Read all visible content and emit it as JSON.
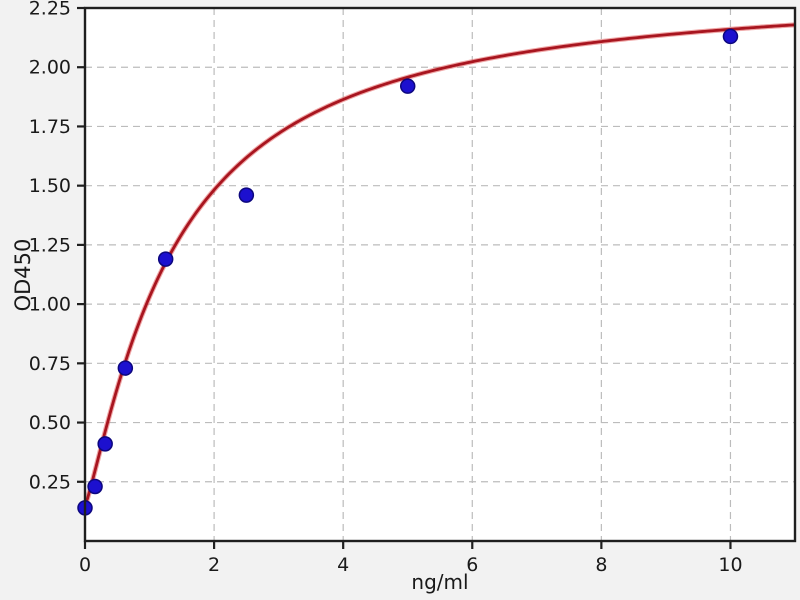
{
  "chart_data": {
    "type": "scatter",
    "title": "",
    "xlabel": "ng/ml",
    "ylabel": "OD450",
    "xlim": [
      0,
      11
    ],
    "ylim": [
      0,
      2.25
    ],
    "x_ticks": [
      0,
      2,
      4,
      6,
      8,
      10
    ],
    "y_ticks": [
      0.25,
      0.5,
      0.75,
      1.0,
      1.25,
      1.5,
      1.75,
      2.0,
      2.25
    ],
    "grid": {
      "visible": true,
      "line_style": "dashed",
      "color": "#bcbcbc"
    },
    "legend": {
      "visible": false
    },
    "points": [
      {
        "x": 0,
        "y": 0.14
      },
      {
        "x": 0.156,
        "y": 0.23
      },
      {
        "x": 0.3125,
        "y": 0.41
      },
      {
        "x": 0.625,
        "y": 0.73
      },
      {
        "x": 1.25,
        "y": 1.19
      },
      {
        "x": 2.5,
        "y": 1.46
      },
      {
        "x": 5,
        "y": 1.92
      },
      {
        "x": 10,
        "y": 2.13
      }
    ],
    "point_style": {
      "color": "#1c10cf",
      "edge_color": "#0d077e",
      "radius": 7
    },
    "fit_curve": {
      "model": "4PL",
      "params": {
        "bottom": 0.15,
        "top": 2.35,
        "ec50": 1.4,
        "hill": 1.2
      },
      "color": "#a8151f",
      "glow_color": "#e25c5c"
    },
    "colors": {
      "figure_bg": "#f2f2f2",
      "axes_bg": "#ffffff",
      "spine": "#1f1f1f",
      "tick_label": "#1a1a1a"
    }
  }
}
